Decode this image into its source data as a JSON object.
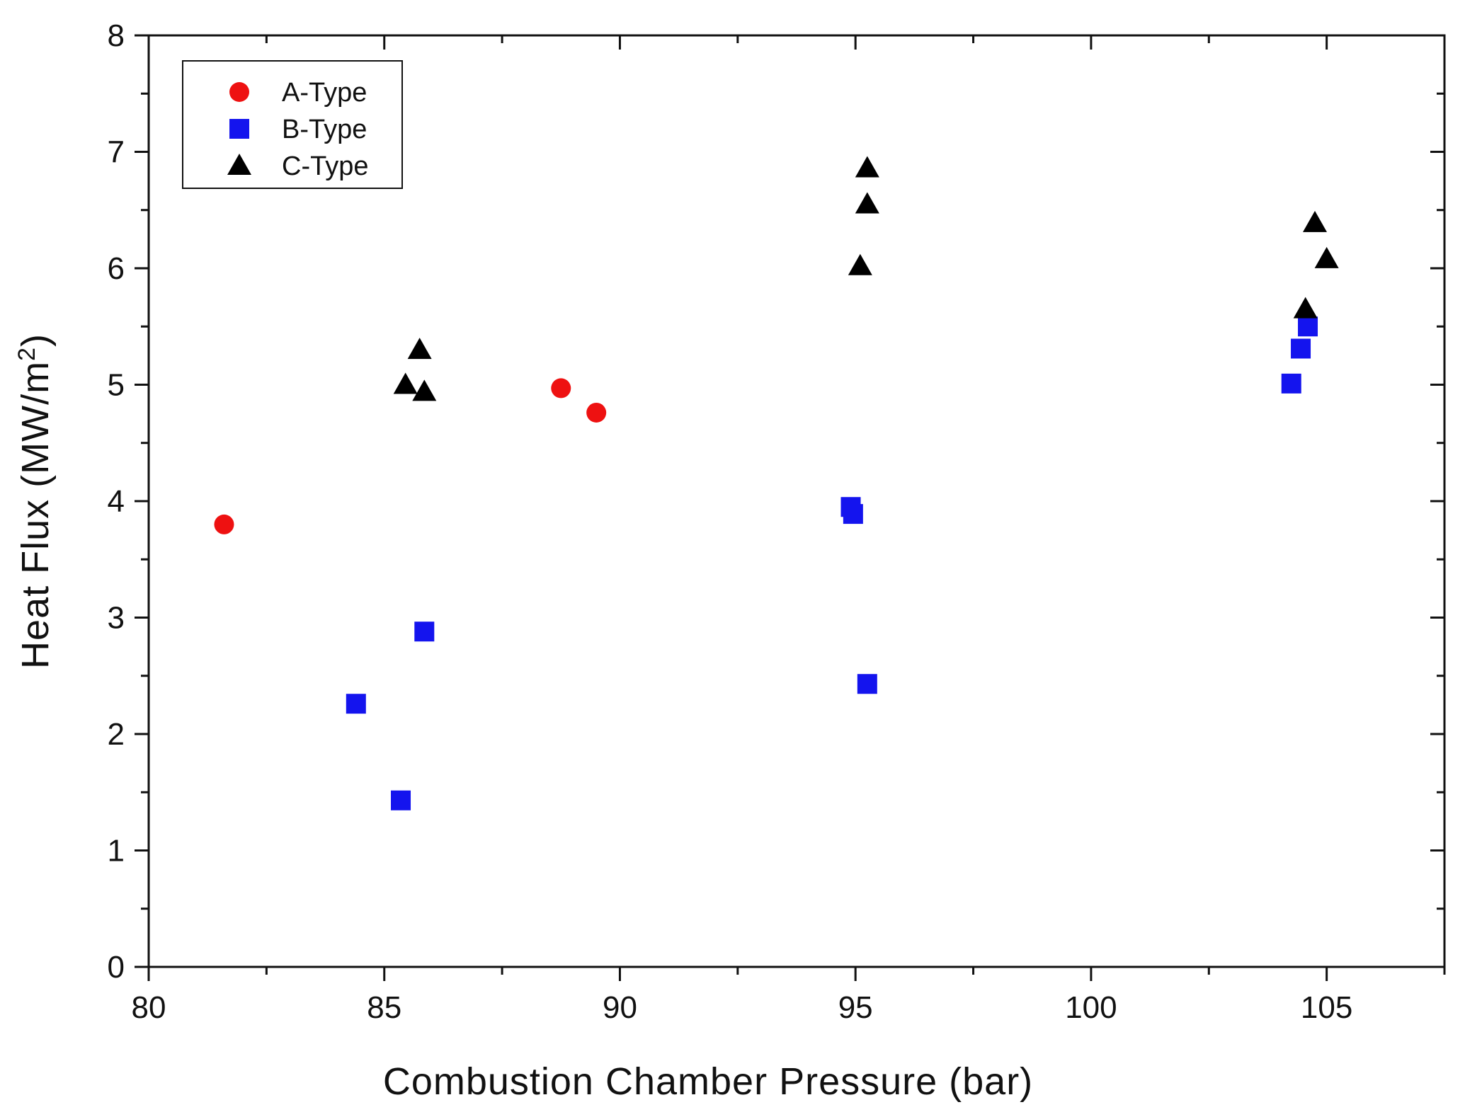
{
  "chart_data": {
    "type": "scatter",
    "title": "",
    "xlabel": "Combustion Chamber Pressure (bar)",
    "ylabel_main": "Heat Flux (MW/m",
    "ylabel_sup": "2",
    "ylabel_close": ")",
    "xlim": [
      80,
      107.5
    ],
    "ylim": [
      0,
      8
    ],
    "x_major_ticks": [
      80,
      85,
      90,
      95,
      100,
      105
    ],
    "x_tick_labels": [
      "80",
      "85",
      "90",
      "95",
      "100",
      "105"
    ],
    "x_minor_step": 2.5,
    "y_major_ticks": [
      0,
      1,
      2,
      3,
      4,
      5,
      6,
      7,
      8
    ],
    "y_tick_labels": [
      "0",
      "1",
      "2",
      "3",
      "4",
      "5",
      "6",
      "7",
      "8"
    ],
    "y_minor_step": 0.5,
    "grid": false,
    "legend_position": "top-left",
    "series": [
      {
        "name": "A-Type",
        "marker": "circle",
        "color": "#ee1111",
        "points": [
          {
            "x": 81.6,
            "y": 3.8
          },
          {
            "x": 88.75,
            "y": 4.97
          },
          {
            "x": 89.5,
            "y": 4.76
          }
        ]
      },
      {
        "name": "B-Type",
        "marker": "square",
        "color": "#1414ee",
        "points": [
          {
            "x": 84.4,
            "y": 2.26
          },
          {
            "x": 85.35,
            "y": 1.43
          },
          {
            "x": 85.85,
            "y": 2.88
          },
          {
            "x": 94.9,
            "y": 3.95
          },
          {
            "x": 94.95,
            "y": 3.89
          },
          {
            "x": 95.25,
            "y": 2.43
          },
          {
            "x": 104.25,
            "y": 5.01
          },
          {
            "x": 104.45,
            "y": 5.31
          },
          {
            "x": 104.6,
            "y": 5.5
          }
        ]
      },
      {
        "name": "C-Type",
        "marker": "triangle",
        "color": "#000000",
        "points": [
          {
            "x": 85.45,
            "y": 5.0
          },
          {
            "x": 85.75,
            "y": 5.3
          },
          {
            "x": 85.85,
            "y": 4.94
          },
          {
            "x": 95.1,
            "y": 6.02
          },
          {
            "x": 95.25,
            "y": 6.55
          },
          {
            "x": 95.25,
            "y": 6.86
          },
          {
            "x": 104.55,
            "y": 5.65
          },
          {
            "x": 104.75,
            "y": 6.39
          },
          {
            "x": 105.0,
            "y": 6.08
          }
        ]
      }
    ]
  }
}
